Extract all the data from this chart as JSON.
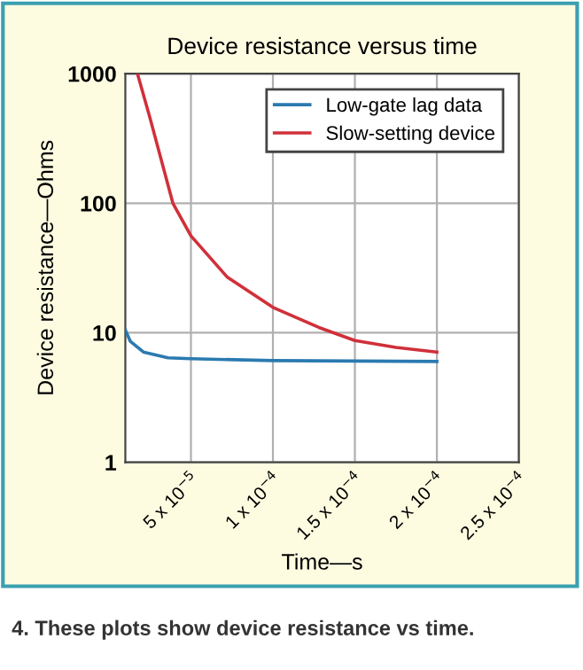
{
  "chart_data": {
    "type": "line",
    "title": "Device resistance versus time",
    "xlabel": "Time—s",
    "ylabel": "Device resistance—Ohms",
    "annotations": [
      "4. These plots show device resistance vs time."
    ],
    "series": [
      {
        "name": "Low-gate lag data",
        "color": "#2a7ab0",
        "x": [
          1e-05,
          1.3e-05,
          2.1e-05,
          3.6e-05,
          5e-05,
          0.0001,
          0.00015,
          0.0002
        ],
        "values": [
          10.5,
          8.6,
          7.1,
          6.4,
          6.3,
          6.1,
          6.05,
          6.0
        ]
      },
      {
        "name": "Slow-setting device",
        "color": "#d0303a",
        "x": [
          1.74e-05,
          2.5e-05,
          3.9e-05,
          5e-05,
          7.2e-05,
          0.0001,
          0.000128,
          0.00015,
          0.000175,
          0.0002
        ],
        "values": [
          1000,
          457,
          100,
          56,
          27,
          15.7,
          11,
          8.7,
          7.7,
          7.1
        ]
      }
    ],
    "log": "y",
    "xlim": [
      1e-05,
      0.00025
    ],
    "ylim": [
      1,
      1000
    ],
    "xticks": [
      {
        "value": 5e-05,
        "label": "5 x 10$^{−5}$"
      },
      {
        "value": 0.0001,
        "label": "1 x 10$^{−4}$"
      },
      {
        "value": 0.00015,
        "label": "1.5 x 10$^{−4}$"
      },
      {
        "value": 0.0002,
        "label": "2 x 10$^{−4}$"
      },
      {
        "value": 0.00025,
        "label": "2.5 x 10$^{−4}$"
      }
    ],
    "yticks": [
      1,
      10,
      100,
      1000
    ],
    "grid": true,
    "legend": "top right",
    "line_style": "solid",
    "marker": "none"
  }
}
